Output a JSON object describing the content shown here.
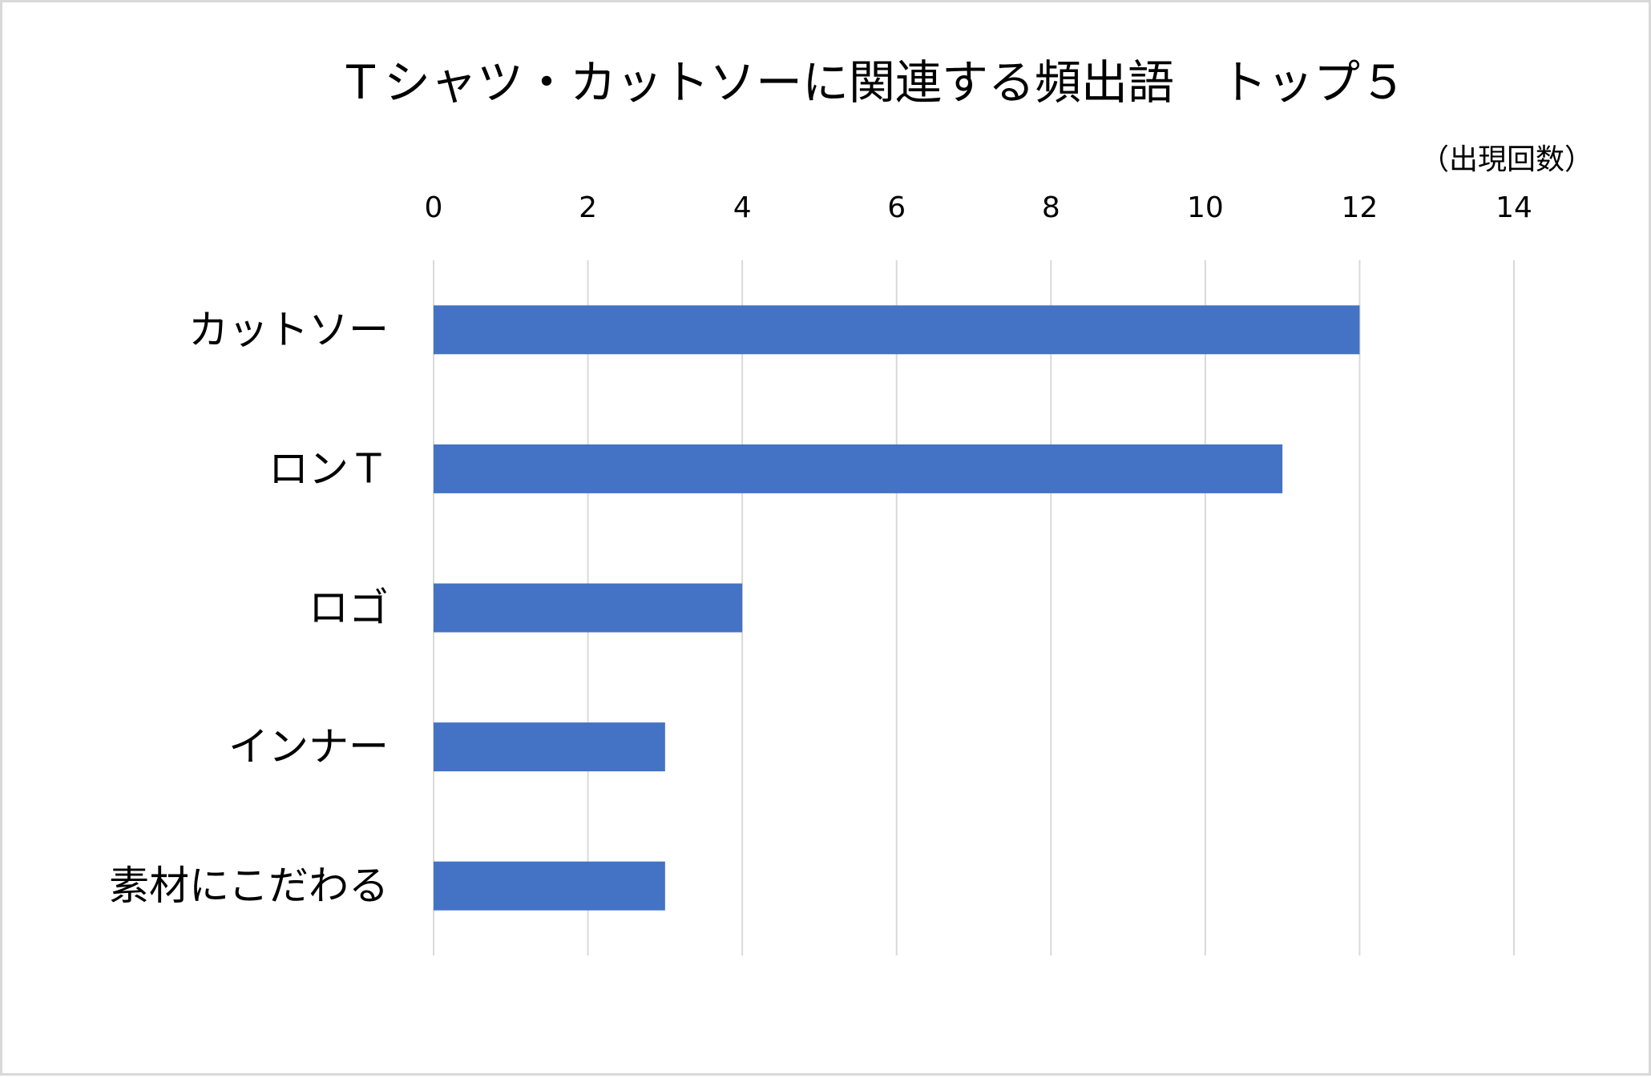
{
  "chart_data": {
    "type": "bar",
    "orientation": "horizontal",
    "title": "Ｔシャツ・カットソーに関連する頻出語　トップ５",
    "unit_label": "（出現回数）",
    "categories": [
      "カットソー",
      "ロンＴ",
      "ロゴ",
      "インナー",
      "素材にこだわる"
    ],
    "values": [
      12,
      11,
      4,
      3,
      3
    ],
    "xlim": [
      0,
      14
    ],
    "ticks": [
      "0",
      "2",
      "4",
      "6",
      "8",
      "10",
      "12",
      "14"
    ],
    "tick_values": [
      0,
      2,
      4,
      6,
      8,
      10,
      12,
      14
    ],
    "axis_position": "top",
    "grid": true,
    "bar_color": "#4472C4",
    "grid_color": "#D9D9D9"
  }
}
